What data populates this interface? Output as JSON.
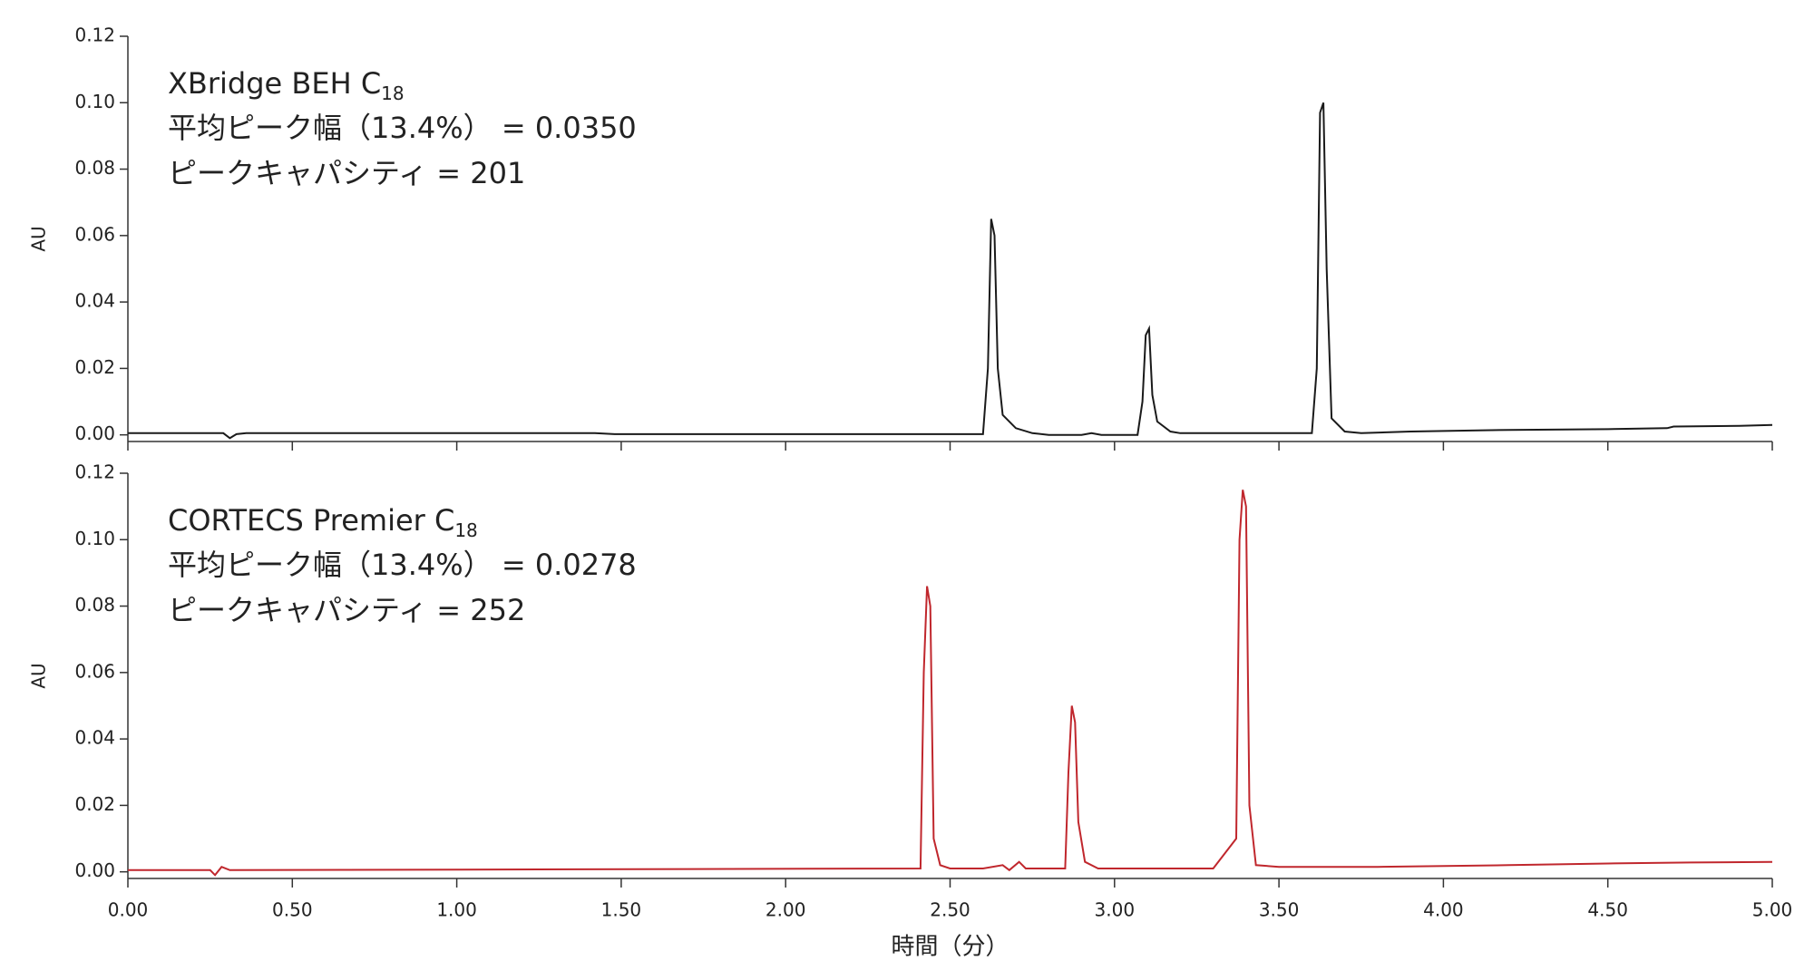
{
  "chart_data": [
    {
      "type": "line",
      "title": "XBridge BEH C",
      "title_sub": "18",
      "annotations": [
        "平均ピーク幅（13.4%） = 0.0350",
        "ピークキャパシティ = 201"
      ],
      "ylabel": "AU",
      "ylim": [
        -0.002,
        0.12
      ],
      "yticks": [
        {
          "value": 0,
          "label": "0.00"
        },
        {
          "value": 0.02,
          "label": "0.02"
        },
        {
          "value": 0.04,
          "label": "0.04"
        },
        {
          "value": 0.06,
          "label": "0.06"
        },
        {
          "value": 0.08,
          "label": "0.08"
        },
        {
          "value": 0.1,
          "label": "0.10"
        },
        {
          "value": 0.12,
          "label": "0.12"
        }
      ],
      "xlim": [
        0,
        5
      ],
      "series": [
        {
          "color": "#1a1a1a",
          "x": [
            0,
            0.29,
            0.31,
            0.33,
            0.36,
            0.75,
            1.42,
            1.48,
            2.6,
            2.615,
            2.625,
            2.635,
            2.645,
            2.66,
            2.7,
            2.75,
            2.8,
            2.9,
            2.93,
            2.96,
            3.07,
            3.085,
            3.095,
            3.105,
            3.115,
            3.13,
            3.17,
            3.2,
            3.6,
            3.615,
            3.625,
            3.635,
            3.645,
            3.66,
            3.7,
            3.75,
            3.9,
            4.2,
            4.5,
            4.68,
            4.7,
            4.9,
            5.0
          ],
          "values": [
            0.0005,
            0.0005,
            -0.001,
            0.0002,
            0.0005,
            0.0005,
            0.0005,
            0.0002,
            0.0002,
            0.02,
            0.065,
            0.06,
            0.02,
            0.006,
            0.002,
            0.0005,
            0,
            0,
            0.0005,
            0,
            0,
            0.01,
            0.03,
            0.032,
            0.012,
            0.004,
            0.001,
            0.0005,
            0.0005,
            0.02,
            0.097,
            0.1,
            0.05,
            0.005,
            0.001,
            0.0005,
            0.001,
            0.0015,
            0.0017,
            0.002,
            0.0025,
            0.0027,
            0.003
          ]
        }
      ]
    },
    {
      "type": "line",
      "title": "CORTECS Premier C",
      "title_sub": "18",
      "annotations": [
        "平均ピーク幅（13.4%） = 0.0278",
        "ピークキャパシティ = 252"
      ],
      "ylabel": "AU",
      "xlabel": "時間（分）",
      "ylim": [
        -0.002,
        0.12
      ],
      "yticks": [
        {
          "value": 0,
          "label": "0.00"
        },
        {
          "value": 0.02,
          "label": "0.02"
        },
        {
          "value": 0.04,
          "label": "0.04"
        },
        {
          "value": 0.06,
          "label": "0.06"
        },
        {
          "value": 0.08,
          "label": "0.08"
        },
        {
          "value": 0.1,
          "label": "0.10"
        },
        {
          "value": 0.12,
          "label": "0.12"
        }
      ],
      "xlim": [
        0,
        5
      ],
      "xticks": [
        {
          "value": 0,
          "label": "0.00"
        },
        {
          "value": 0.5,
          "label": "0.50"
        },
        {
          "value": 1,
          "label": "1.00"
        },
        {
          "value": 1.5,
          "label": "1.50"
        },
        {
          "value": 2,
          "label": "2.00"
        },
        {
          "value": 2.5,
          "label": "2.50"
        },
        {
          "value": 3,
          "label": "3.00"
        },
        {
          "value": 3.5,
          "label": "3.50"
        },
        {
          "value": 4,
          "label": "4.00"
        },
        {
          "value": 4.5,
          "label": "4.50"
        },
        {
          "value": 5,
          "label": "5.00"
        }
      ],
      "series": [
        {
          "color": "#c0272d",
          "x": [
            0,
            0.25,
            0.265,
            0.285,
            0.31,
            2.41,
            2.42,
            2.43,
            2.44,
            2.45,
            2.47,
            2.5,
            2.6,
            2.66,
            2.68,
            2.71,
            2.73,
            2.85,
            2.86,
            2.87,
            2.88,
            2.89,
            2.91,
            2.95,
            3.3,
            3.37,
            3.38,
            3.39,
            3.4,
            3.41,
            3.43,
            3.5,
            3.8,
            4.2,
            4.5,
            4.75,
            5.0
          ],
          "values": [
            0.0005,
            0.0005,
            -0.001,
            0.0015,
            0.0005,
            0.001,
            0.06,
            0.086,
            0.08,
            0.01,
            0.002,
            0.001,
            0.001,
            0.002,
            0.0005,
            0.003,
            0.001,
            0.001,
            0.03,
            0.05,
            0.045,
            0.015,
            0.003,
            0.001,
            0.001,
            0.01,
            0.1,
            0.115,
            0.11,
            0.02,
            0.002,
            0.0015,
            0.0015,
            0.002,
            0.0025,
            0.0028,
            0.003
          ]
        }
      ]
    }
  ]
}
